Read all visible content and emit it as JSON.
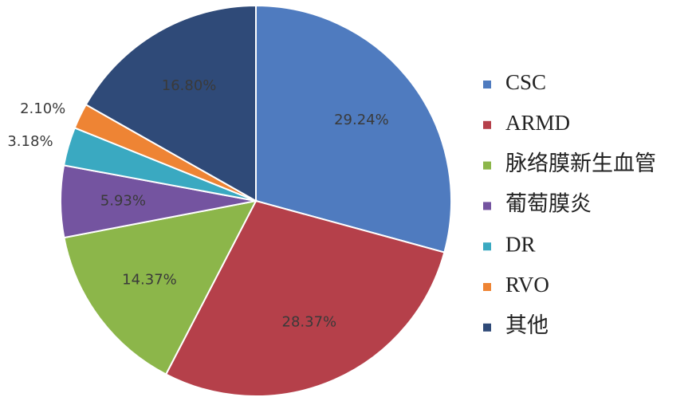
{
  "chart_data": {
    "type": "pie",
    "categories": [
      "CSC",
      "ARMD",
      "脉络膜新生血管",
      "葡萄膜炎",
      "DR",
      "RVO",
      "其他"
    ],
    "values": [
      29.24,
      28.37,
      14.37,
      5.93,
      3.18,
      2.1,
      16.8
    ],
    "value_labels": [
      "29.24%",
      "28.37%",
      "14.37%",
      "5.93%",
      "3.18%",
      "2.10%",
      "16.80%"
    ],
    "colors": [
      "#4f7bbf",
      "#b5404a",
      "#8cb64a",
      "#7454a0",
      "#3aa9c1",
      "#ee8434",
      "#2f4a78"
    ],
    "legend": "right"
  }
}
